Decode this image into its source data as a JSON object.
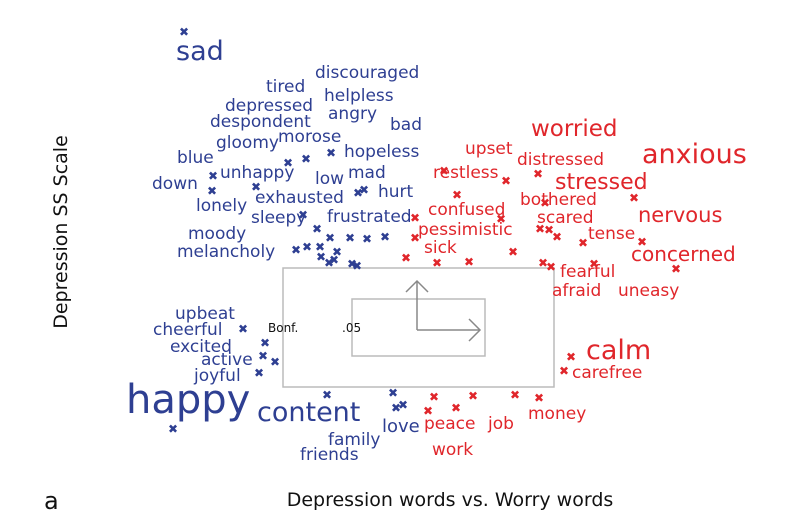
{
  "chart_data": {
    "type": "scatter",
    "title": "",
    "xlabel": "Depression words vs. Worry words",
    "ylabel": "Depression SS Scale",
    "panel_label": "a",
    "legend": {
      "labels": [
        "Bonf.",
        ".05"
      ]
    },
    "colors": {
      "depression": "#2e3f92",
      "worry": "#e0262b",
      "box": "#bbbbbb",
      "arrow": "#888888"
    },
    "series": [
      {
        "name": "",
        "color": "#2e3f92",
        "words": [
          {
            "text": "sad",
            "size": 27
          },
          {
            "text": "discouraged",
            "size": 17
          },
          {
            "text": "tired",
            "size": 17
          },
          {
            "text": "helpless",
            "size": 17
          },
          {
            "text": "depressed",
            "size": 17
          },
          {
            "text": "angry",
            "size": 17
          },
          {
            "text": "despondent",
            "size": 17
          },
          {
            "text": "bad",
            "size": 17
          },
          {
            "text": "morose",
            "size": 17
          },
          {
            "text": "gloomy",
            "size": 17
          },
          {
            "text": "hopeless",
            "size": 17
          },
          {
            "text": "blue",
            "size": 17
          },
          {
            "text": "low",
            "size": 17
          },
          {
            "text": "mad",
            "size": 17
          },
          {
            "text": "unhappy",
            "size": 17
          },
          {
            "text": "down",
            "size": 17
          },
          {
            "text": "hurt",
            "size": 17
          },
          {
            "text": "exhausted",
            "size": 17
          },
          {
            "text": "lonely",
            "size": 17
          },
          {
            "text": "sleepy",
            "size": 17
          },
          {
            "text": "frustrated",
            "size": 17
          },
          {
            "text": "moody",
            "size": 17
          },
          {
            "text": "melancholy",
            "size": 17
          },
          {
            "text": "upbeat",
            "size": 17
          },
          {
            "text": "cheerful",
            "size": 17
          },
          {
            "text": "excited",
            "size": 17
          },
          {
            "text": "active",
            "size": 17
          },
          {
            "text": "joyful",
            "size": 17
          },
          {
            "text": "happy",
            "size": 40
          },
          {
            "text": "content",
            "size": 27
          },
          {
            "text": "love",
            "size": 18
          },
          {
            "text": "family",
            "size": 17
          },
          {
            "text": "friends",
            "size": 17
          }
        ]
      },
      {
        "name": "",
        "color": "#e0262b",
        "words": [
          {
            "text": "worried",
            "size": 23
          },
          {
            "text": "upset",
            "size": 17
          },
          {
            "text": "anxious",
            "size": 27
          },
          {
            "text": "distressed",
            "size": 17
          },
          {
            "text": "restless",
            "size": 17
          },
          {
            "text": "stressed",
            "size": 22
          },
          {
            "text": "bothered",
            "size": 17
          },
          {
            "text": "confused",
            "size": 17
          },
          {
            "text": "nervous",
            "size": 21
          },
          {
            "text": "scared",
            "size": 17
          },
          {
            "text": "pessimistic",
            "size": 17
          },
          {
            "text": "tense",
            "size": 17
          },
          {
            "text": "sick",
            "size": 17
          },
          {
            "text": "concerned",
            "size": 20
          },
          {
            "text": "fearful",
            "size": 17
          },
          {
            "text": "afraid",
            "size": 17
          },
          {
            "text": "uneasy",
            "size": 17
          },
          {
            "text": "calm",
            "size": 27
          },
          {
            "text": "carefree",
            "size": 17
          },
          {
            "text": "money",
            "size": 17
          },
          {
            "text": "peace",
            "size": 17
          },
          {
            "text": "job",
            "size": 17
          },
          {
            "text": "work",
            "size": 17
          }
        ]
      }
    ],
    "markers": [
      {
        "series": 0,
        "count": 34
      },
      {
        "series": 1,
        "count": 30
      }
    ]
  }
}
